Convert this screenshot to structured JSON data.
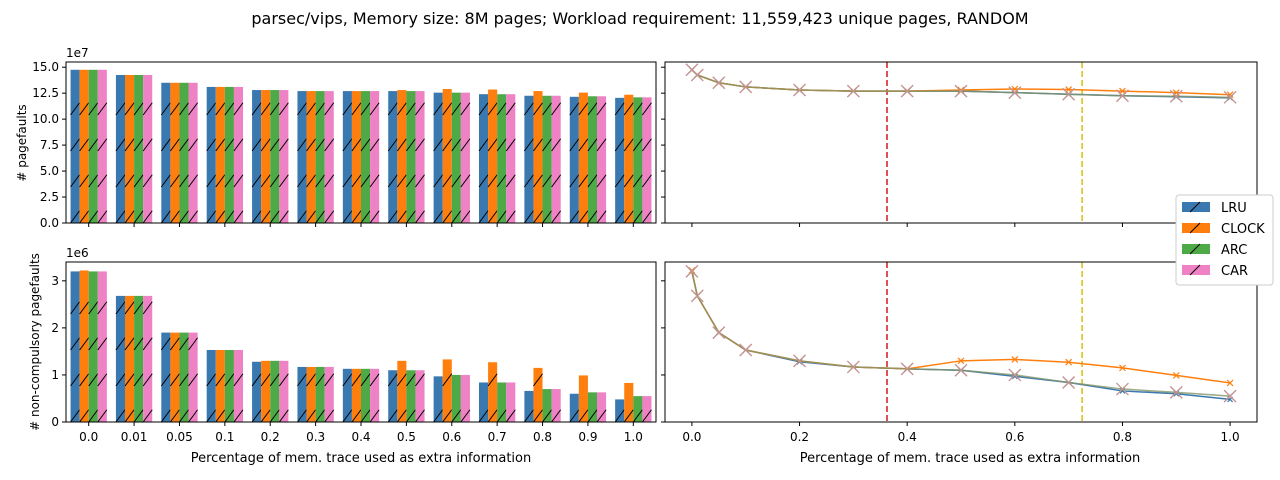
{
  "title": "parsec/vips, Memory size: 8M pages; Workload requirement: 11,559,423 unique pages, RANDOM",
  "colors": {
    "LRU": "#3a78b0",
    "CLOCK": "#ff7f0e",
    "ARC": "#4daa47",
    "CAR": "#ee82c4",
    "red_line": "#d62728",
    "yellow_line": "#d6c51a",
    "x_marker": "#c49494"
  },
  "chart_data": [
    {
      "type": "bar",
      "panel": "top-left",
      "categories": [
        "0.0",
        "0.01",
        "0.05",
        "0.1",
        "0.2",
        "0.3",
        "0.4",
        "0.5",
        "0.6",
        "0.7",
        "0.8",
        "0.9",
        "1.0"
      ],
      "series": [
        {
          "name": "LRU",
          "values": [
            14.75,
            14.25,
            13.5,
            13.1,
            12.8,
            12.7,
            12.7,
            12.7,
            12.55,
            12.4,
            12.25,
            12.15,
            12.05
          ]
        },
        {
          "name": "CLOCK",
          "values": [
            14.75,
            14.25,
            13.5,
            13.1,
            12.8,
            12.7,
            12.7,
            12.8,
            12.9,
            12.85,
            12.7,
            12.55,
            12.35
          ]
        },
        {
          "name": "ARC",
          "values": [
            14.75,
            14.25,
            13.5,
            13.1,
            12.8,
            12.7,
            12.7,
            12.7,
            12.55,
            12.4,
            12.25,
            12.2,
            12.1
          ]
        },
        {
          "name": "CAR",
          "values": [
            14.75,
            14.25,
            13.5,
            13.1,
            12.8,
            12.7,
            12.7,
            12.7,
            12.55,
            12.4,
            12.25,
            12.2,
            12.1
          ]
        }
      ],
      "scale_label": "1e7",
      "ylabel": "# pagefaults",
      "ylim": [
        0,
        15.5
      ],
      "yticks": [
        0,
        2.5,
        5,
        7.5,
        10,
        12.5,
        15
      ],
      "ytick_labels": [
        "0.0",
        "2.5",
        "5.0",
        "7.5",
        "10.0",
        "12.5",
        "15.0"
      ],
      "grid": false
    },
    {
      "type": "bar",
      "panel": "bottom-left",
      "categories": [
        "0.0",
        "0.01",
        "0.05",
        "0.1",
        "0.2",
        "0.3",
        "0.4",
        "0.5",
        "0.6",
        "0.7",
        "0.8",
        "0.9",
        "1.0"
      ],
      "series": [
        {
          "name": "LRU",
          "values": [
            3.2,
            2.68,
            1.9,
            1.53,
            1.28,
            1.17,
            1.13,
            1.1,
            0.97,
            0.84,
            0.66,
            0.6,
            0.48
          ]
        },
        {
          "name": "CLOCK",
          "values": [
            3.22,
            2.68,
            1.9,
            1.53,
            1.3,
            1.17,
            1.13,
            1.3,
            1.33,
            1.27,
            1.15,
            0.99,
            0.83
          ]
        },
        {
          "name": "ARC",
          "values": [
            3.2,
            2.68,
            1.9,
            1.53,
            1.3,
            1.17,
            1.13,
            1.1,
            1.0,
            0.84,
            0.7,
            0.63,
            0.55
          ]
        },
        {
          "name": "CAR",
          "values": [
            3.2,
            2.68,
            1.9,
            1.53,
            1.3,
            1.17,
            1.13,
            1.1,
            1.0,
            0.84,
            0.7,
            0.63,
            0.55
          ]
        }
      ],
      "scale_label": "1e6",
      "ylabel": "# non-compulsory pagefaults",
      "xlabel": "Percentage of mem. trace used as extra information",
      "ylim": [
        0,
        3.4
      ],
      "yticks": [
        0,
        1,
        2,
        3
      ],
      "ytick_labels": [
        "0",
        "1",
        "2",
        "3"
      ],
      "grid": false
    },
    {
      "type": "line",
      "panel": "top-right",
      "x": [
        0.0,
        0.01,
        0.05,
        0.1,
        0.2,
        0.3,
        0.4,
        0.5,
        0.6,
        0.7,
        0.8,
        0.9,
        1.0
      ],
      "series": [
        {
          "name": "LRU",
          "values": [
            14.75,
            14.25,
            13.5,
            13.1,
            12.8,
            12.7,
            12.7,
            12.7,
            12.55,
            12.4,
            12.25,
            12.15,
            12.05
          ]
        },
        {
          "name": "CLOCK",
          "values": [
            14.75,
            14.25,
            13.5,
            13.1,
            12.8,
            12.7,
            12.7,
            12.8,
            12.9,
            12.85,
            12.7,
            12.55,
            12.35
          ]
        },
        {
          "name": "ARC",
          "values": [
            14.75,
            14.25,
            13.5,
            13.1,
            12.8,
            12.7,
            12.7,
            12.7,
            12.55,
            12.4,
            12.25,
            12.2,
            12.1
          ]
        },
        {
          "name": "CAR",
          "values": [
            14.75,
            14.25,
            13.5,
            13.1,
            12.8,
            12.7,
            12.7,
            12.7,
            12.55,
            12.4,
            12.25,
            12.2,
            12.1
          ]
        }
      ],
      "vlines": [
        0.3625,
        0.725
      ],
      "xlim": [
        -0.05,
        1.05
      ],
      "ylim": [
        0,
        15.5
      ],
      "grid": false
    },
    {
      "type": "line",
      "panel": "bottom-right",
      "x": [
        0.0,
        0.01,
        0.05,
        0.1,
        0.2,
        0.3,
        0.4,
        0.5,
        0.6,
        0.7,
        0.8,
        0.9,
        1.0
      ],
      "series": [
        {
          "name": "LRU",
          "values": [
            3.2,
            2.68,
            1.9,
            1.53,
            1.28,
            1.17,
            1.13,
            1.1,
            0.97,
            0.84,
            0.66,
            0.6,
            0.48
          ]
        },
        {
          "name": "CLOCK",
          "values": [
            3.22,
            2.68,
            1.9,
            1.53,
            1.3,
            1.17,
            1.13,
            1.3,
            1.33,
            1.27,
            1.15,
            0.99,
            0.83
          ]
        },
        {
          "name": "ARC",
          "values": [
            3.2,
            2.68,
            1.9,
            1.53,
            1.3,
            1.17,
            1.13,
            1.1,
            1.0,
            0.84,
            0.7,
            0.63,
            0.55
          ]
        },
        {
          "name": "CAR",
          "values": [
            3.2,
            2.68,
            1.9,
            1.53,
            1.3,
            1.17,
            1.13,
            1.1,
            1.0,
            0.84,
            0.7,
            0.63,
            0.55
          ]
        }
      ],
      "vlines": [
        0.3625,
        0.725
      ],
      "xlim": [
        -0.05,
        1.05
      ],
      "xticks": [
        0.0,
        0.2,
        0.4,
        0.6,
        0.8,
        1.0
      ],
      "xtick_labels": [
        "0.0",
        "0.2",
        "0.4",
        "0.6",
        "0.8",
        "1.0"
      ],
      "xlabel": "Percentage of mem. trace used as extra information",
      "ylim": [
        0,
        3.4
      ],
      "grid": false
    }
  ],
  "legend": {
    "placement": "right",
    "entries": [
      "LRU",
      "CLOCK",
      "ARC",
      "CAR"
    ]
  }
}
